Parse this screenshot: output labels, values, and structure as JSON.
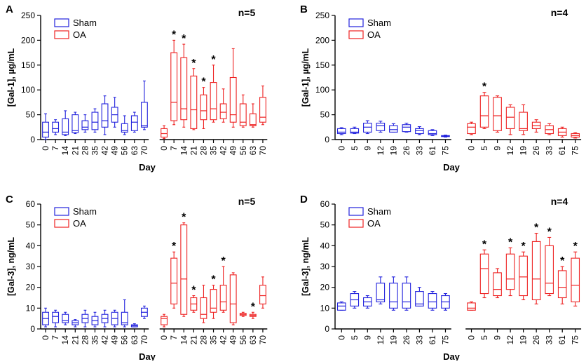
{
  "colors": {
    "sham": "#2222dd",
    "oa": "#ee2222",
    "axis": "#000000"
  },
  "chart_data": [
    {
      "panel": "A",
      "type": "box",
      "n_label": "n=5",
      "ylabel": "[Gal-1], µg/mL",
      "xlabel": "Day",
      "ylim": [
        0,
        250
      ],
      "yticks": [
        0,
        50,
        100,
        150,
        200,
        250
      ],
      "legend": [
        "Sham",
        "OA"
      ],
      "legend_position": "top-left",
      "groups": [
        {
          "name": "Sham",
          "color": "sham",
          "categories": [
            "0",
            "7",
            "14",
            "21",
            "28",
            "35",
            "42",
            "49",
            "56",
            "63",
            "70"
          ],
          "boxes": [
            {
              "min": 0,
              "q1": 5,
              "med": 15,
              "q3": 35,
              "max": 52,
              "star": false
            },
            {
              "min": 10,
              "q1": 15,
              "med": 22,
              "q3": 35,
              "max": 40,
              "star": false
            },
            {
              "min": 8,
              "q1": 10,
              "med": 15,
              "q3": 42,
              "max": 58,
              "star": false
            },
            {
              "min": 12,
              "q1": 14,
              "med": 18,
              "q3": 50,
              "max": 55,
              "star": false
            },
            {
              "min": 15,
              "q1": 20,
              "med": 25,
              "q3": 38,
              "max": 50,
              "star": false
            },
            {
              "min": 15,
              "q1": 20,
              "med": 35,
              "q3": 55,
              "max": 62,
              "star": false
            },
            {
              "min": 10,
              "q1": 25,
              "med": 38,
              "q3": 72,
              "max": 88,
              "star": false
            },
            {
              "min": 25,
              "q1": 35,
              "med": 50,
              "q3": 65,
              "max": 85,
              "star": false
            },
            {
              "min": 10,
              "q1": 15,
              "med": 18,
              "q3": 32,
              "max": 48,
              "star": false
            },
            {
              "min": 15,
              "q1": 18,
              "med": 35,
              "q3": 48,
              "max": 55,
              "star": false
            },
            {
              "min": 20,
              "q1": 25,
              "med": 28,
              "q3": 75,
              "max": 118,
              "star": false
            }
          ]
        },
        {
          "name": "OA",
          "color": "oa",
          "categories": [
            "0",
            "7",
            "14",
            "21",
            "28",
            "35",
            "42",
            "49",
            "56",
            "63",
            "70"
          ],
          "boxes": [
            {
              "min": 2,
              "q1": 5,
              "med": 12,
              "q3": 22,
              "max": 28,
              "star": false
            },
            {
              "min": 30,
              "q1": 38,
              "med": 75,
              "q3": 175,
              "max": 200,
              "star": true
            },
            {
              "min": 25,
              "q1": 40,
              "med": 62,
              "q3": 165,
              "max": 192,
              "star": true
            },
            {
              "min": 20,
              "q1": 22,
              "med": 60,
              "q3": 128,
              "max": 143,
              "star": true
            },
            {
              "min": 22,
              "q1": 40,
              "med": 58,
              "q3": 90,
              "max": 105,
              "star": true
            },
            {
              "min": 35,
              "q1": 40,
              "med": 62,
              "q3": 115,
              "max": 150,
              "star": true
            },
            {
              "min": 35,
              "q1": 42,
              "med": 55,
              "q3": 72,
              "max": 102,
              "star": false
            },
            {
              "min": 25,
              "q1": 35,
              "med": 50,
              "q3": 125,
              "max": 183,
              "star": false
            },
            {
              "min": 25,
              "q1": 28,
              "med": 35,
              "q3": 72,
              "max": 90,
              "star": false
            },
            {
              "min": 25,
              "q1": 28,
              "med": 30,
              "q3": 52,
              "max": 72,
              "star": false
            },
            {
              "min": 30,
              "q1": 35,
              "med": 45,
              "q3": 85,
              "max": 108,
              "star": false
            }
          ]
        }
      ]
    },
    {
      "panel": "B",
      "type": "box",
      "n_label": "n=4",
      "ylabel": "[Gal-1], µg/mL",
      "xlabel": "Day",
      "ylim": [
        0,
        250
      ],
      "yticks": [
        0,
        50,
        100,
        150,
        200,
        250
      ],
      "legend": [
        "Sham",
        "OA"
      ],
      "legend_position": "top-left",
      "groups": [
        {
          "name": "Sham",
          "color": "sham",
          "categories": [
            "0",
            "5",
            "9",
            "12",
            "19",
            "26",
            "33",
            "61",
            "75"
          ],
          "boxes": [
            {
              "min": 10,
              "q1": 12,
              "med": 15,
              "q3": 22,
              "max": 24,
              "star": false
            },
            {
              "min": 12,
              "q1": 13,
              "med": 15,
              "q3": 22,
              "max": 25,
              "star": false
            },
            {
              "min": 12,
              "q1": 15,
              "med": 25,
              "q3": 33,
              "max": 38,
              "star": false
            },
            {
              "min": 15,
              "q1": 18,
              "med": 28,
              "q3": 33,
              "max": 37,
              "star": false
            },
            {
              "min": 15,
              "q1": 15,
              "med": 20,
              "q3": 28,
              "max": 32,
              "star": false
            },
            {
              "min": 15,
              "q1": 16,
              "med": 25,
              "q3": 30,
              "max": 33,
              "star": false
            },
            {
              "min": 10,
              "q1": 12,
              "med": 18,
              "q3": 22,
              "max": 26,
              "star": false
            },
            {
              "min": 8,
              "q1": 10,
              "med": 12,
              "q3": 18,
              "max": 20,
              "star": false
            },
            {
              "min": 5,
              "q1": 6,
              "med": 7,
              "q3": 8,
              "max": 9,
              "star": false
            }
          ]
        },
        {
          "name": "OA",
          "color": "oa",
          "categories": [
            "0",
            "5",
            "9",
            "12",
            "19",
            "26",
            "33",
            "61",
            "75"
          ],
          "boxes": [
            {
              "min": 10,
              "q1": 12,
              "med": 25,
              "q3": 32,
              "max": 35,
              "star": false
            },
            {
              "min": 22,
              "q1": 25,
              "med": 48,
              "q3": 88,
              "max": 95,
              "star": true
            },
            {
              "min": 15,
              "q1": 18,
              "med": 48,
              "q3": 85,
              "max": 88,
              "star": false
            },
            {
              "min": 10,
              "q1": 22,
              "med": 45,
              "q3": 65,
              "max": 70,
              "star": false
            },
            {
              "min": 10,
              "q1": 18,
              "med": 22,
              "q3": 55,
              "max": 70,
              "star": false
            },
            {
              "min": 15,
              "q1": 22,
              "med": 28,
              "q3": 35,
              "max": 40,
              "star": false
            },
            {
              "min": 10,
              "q1": 12,
              "med": 20,
              "q3": 28,
              "max": 32,
              "star": false
            },
            {
              "min": 5,
              "q1": 8,
              "med": 15,
              "q3": 22,
              "max": 25,
              "star": false
            },
            {
              "min": 3,
              "q1": 5,
              "med": 8,
              "q3": 12,
              "max": 14,
              "star": false
            }
          ]
        }
      ]
    },
    {
      "panel": "C",
      "type": "box",
      "n_label": "n=5",
      "ylabel": "[Gal-3], ng/mL",
      "xlabel": "Day",
      "ylim": [
        0,
        60
      ],
      "yticks": [
        0,
        10,
        20,
        30,
        40,
        50,
        60
      ],
      "legend": [
        "Sham",
        "OA"
      ],
      "legend_position": "top-left",
      "groups": [
        {
          "name": "Sham",
          "color": "sham",
          "categories": [
            "0",
            "7",
            "14",
            "21",
            "28",
            "35",
            "42",
            "49",
            "56",
            "63",
            "70"
          ],
          "boxes": [
            {
              "min": 1,
              "q1": 2,
              "med": 5,
              "q3": 8,
              "max": 10,
              "star": false
            },
            {
              "min": 1,
              "q1": 3,
              "med": 6,
              "q3": 8,
              "max": 9,
              "star": false
            },
            {
              "min": 2,
              "q1": 3,
              "med": 4,
              "q3": 7,
              "max": 8,
              "star": false
            },
            {
              "min": 1,
              "q1": 2,
              "med": 3,
              "q3": 4,
              "max": 4.5,
              "star": false
            },
            {
              "min": 1,
              "q1": 3,
              "med": 5,
              "q3": 7,
              "max": 9,
              "star": false
            },
            {
              "min": 1,
              "q1": 2,
              "med": 4,
              "q3": 6,
              "max": 8,
              "star": false
            },
            {
              "min": 1,
              "q1": 3,
              "med": 5,
              "q3": 7,
              "max": 9,
              "star": false
            },
            {
              "min": 1,
              "q1": 2,
              "med": 5,
              "q3": 8,
              "max": 9,
              "star": false
            },
            {
              "min": 1,
              "q1": 2,
              "med": 3,
              "q3": 8,
              "max": 14,
              "star": false
            },
            {
              "min": 1,
              "q1": 1,
              "med": 1.5,
              "q3": 2,
              "max": 2.5,
              "star": false
            },
            {
              "min": 5,
              "q1": 6,
              "med": 8,
              "q3": 10,
              "max": 11,
              "star": false
            }
          ]
        },
        {
          "name": "OA",
          "color": "oa",
          "categories": [
            "0",
            "7",
            "14",
            "21",
            "28",
            "35",
            "42",
            "49",
            "56",
            "63",
            "70"
          ],
          "boxes": [
            {
              "min": 1,
              "q1": 2,
              "med": 5,
              "q3": 6,
              "max": 7,
              "star": false
            },
            {
              "min": 10,
              "q1": 12,
              "med": 22,
              "q3": 34,
              "max": 37,
              "star": true
            },
            {
              "min": 6,
              "q1": 7,
              "med": 24,
              "q3": 50,
              "max": 51,
              "star": true
            },
            {
              "min": 8,
              "q1": 9,
              "med": 12,
              "q3": 15,
              "max": 16,
              "star": true
            },
            {
              "min": 3,
              "q1": 5,
              "med": 7,
              "q3": 15,
              "max": 21,
              "star": false
            },
            {
              "min": 5,
              "q1": 8,
              "med": 10,
              "q3": 19,
              "max": 21,
              "star": true
            },
            {
              "min": 8,
              "q1": 9,
              "med": 13,
              "q3": 21,
              "max": 30,
              "star": true
            },
            {
              "min": 2,
              "q1": 3,
              "med": 12,
              "q3": 26,
              "max": 27,
              "star": false
            },
            {
              "min": 6,
              "q1": 6.5,
              "med": 7,
              "q3": 7.5,
              "max": 8,
              "star": false
            },
            {
              "min": 5,
              "q1": 6,
              "med": 6.5,
              "q3": 7,
              "max": 8,
              "star": true
            },
            {
              "min": 10,
              "q1": 12,
              "med": 16,
              "q3": 21,
              "max": 25,
              "star": false
            }
          ]
        }
      ]
    },
    {
      "panel": "D",
      "type": "box",
      "n_label": "n=4",
      "ylabel": "[Gal-3], ng/mL",
      "xlabel": "Day",
      "ylim": [
        0,
        60
      ],
      "yticks": [
        0,
        10,
        20,
        30,
        40,
        50,
        60
      ],
      "legend": [
        "Sham",
        "OA"
      ],
      "legend_position": "top-left",
      "groups": [
        {
          "name": "Sham",
          "color": "sham",
          "categories": [
            "0",
            "5",
            "9",
            "12",
            "19",
            "26",
            "33",
            "61",
            "75"
          ],
          "boxes": [
            {
              "min": 9,
              "q1": 9,
              "med": 11,
              "q3": 12.5,
              "max": 13,
              "star": false
            },
            {
              "min": 10,
              "q1": 11,
              "med": 14,
              "q3": 17,
              "max": 18,
              "star": false
            },
            {
              "min": 10,
              "q1": 11,
              "med": 13,
              "q3": 15,
              "max": 16,
              "star": false
            },
            {
              "min": 12,
              "q1": 13,
              "med": 14,
              "q3": 22,
              "max": 25,
              "star": false
            },
            {
              "min": 9,
              "q1": 10,
              "med": 13,
              "q3": 22,
              "max": 25,
              "star": false
            },
            {
              "min": 9,
              "q1": 10,
              "med": 13,
              "q3": 22,
              "max": 25,
              "star": false
            },
            {
              "min": 11,
              "q1": 11,
              "med": 12,
              "q3": 18,
              "max": 20,
              "star": false
            },
            {
              "min": 9,
              "q1": 10,
              "med": 13,
              "q3": 17,
              "max": 18,
              "star": false
            },
            {
              "min": 9,
              "q1": 10,
              "med": 13,
              "q3": 16,
              "max": 17,
              "star": false
            }
          ]
        },
        {
          "name": "OA",
          "color": "oa",
          "categories": [
            "0",
            "5",
            "9",
            "12",
            "19",
            "26",
            "33",
            "61",
            "75"
          ],
          "boxes": [
            {
              "min": 9,
              "q1": 9,
              "med": 10,
              "q3": 12.5,
              "max": 13,
              "star": false
            },
            {
              "min": 15,
              "q1": 17,
              "med": 29,
              "q3": 36,
              "max": 38,
              "star": true
            },
            {
              "min": 15,
              "q1": 16,
              "med": 19,
              "q3": 27,
              "max": 29,
              "star": false
            },
            {
              "min": 16,
              "q1": 19,
              "med": 24,
              "q3": 36,
              "max": 39,
              "star": true
            },
            {
              "min": 14,
              "q1": 16,
              "med": 25,
              "q3": 35,
              "max": 37,
              "star": true
            },
            {
              "min": 12,
              "q1": 14,
              "med": 24,
              "q3": 42,
              "max": 46,
              "star": true
            },
            {
              "min": 16,
              "q1": 17,
              "med": 22,
              "q3": 40,
              "max": 44,
              "star": true
            },
            {
              "min": 12,
              "q1": 15,
              "med": 20,
              "q3": 28,
              "max": 30,
              "star": true
            },
            {
              "min": 11,
              "q1": 13,
              "med": 21,
              "q3": 34,
              "max": 37,
              "star": true
            }
          ]
        }
      ]
    }
  ]
}
